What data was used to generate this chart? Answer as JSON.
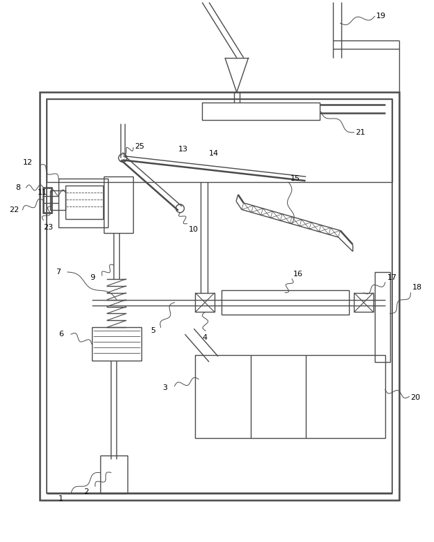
{
  "bg_color": "#ffffff",
  "lc": "#4a4a4a",
  "lw": 1.0,
  "tlw": 1.8,
  "fig_w": 6.23,
  "fig_h": 7.77
}
